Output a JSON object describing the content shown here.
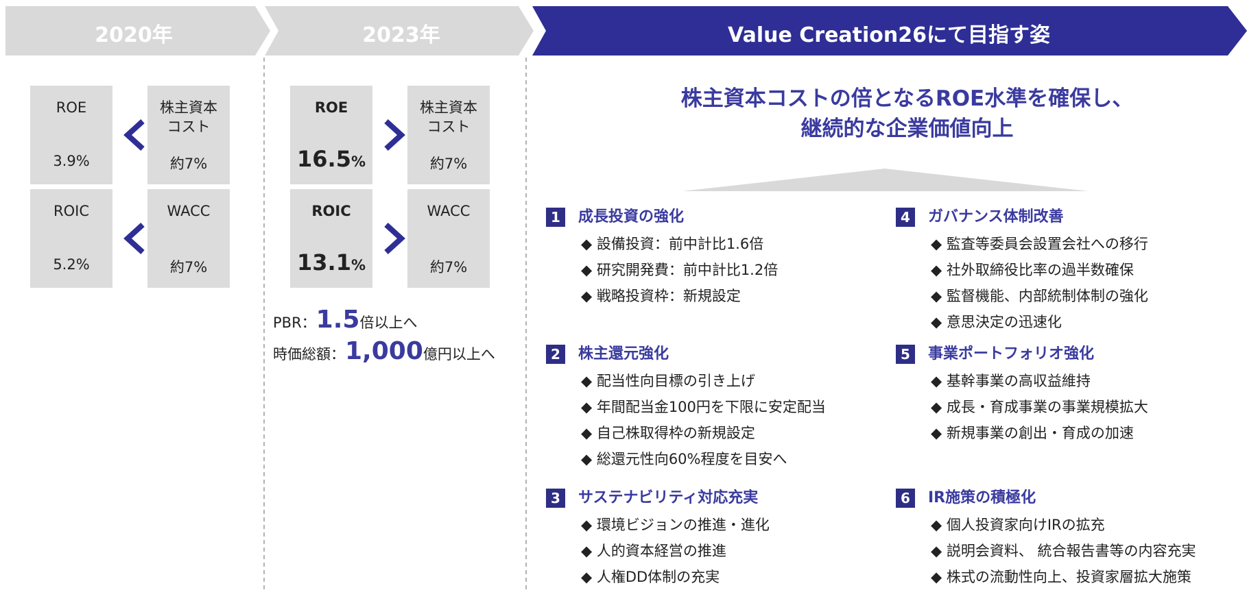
{
  "header": [
    "2020年",
    "2023年",
    "Value Creation26にて目指す姿"
  ],
  "panel_2020": {
    "cells": [
      {
        "label": [
          "ROE"
        ],
        "value": "3.9%"
      },
      {
        "label": [
          "株主資本",
          "コスト"
        ],
        "value": "約7%"
      },
      {
        "label": [
          "ROIC"
        ],
        "value": "5.2%"
      },
      {
        "label": [
          "WACC"
        ],
        "value": "約7%"
      }
    ]
  },
  "panel_2023": {
    "cells": [
      {
        "label": [
          "ROE"
        ],
        "value": "16.5",
        "unit": "%"
      },
      {
        "label": [
          "株主資本",
          "コスト"
        ],
        "value": "約7%"
      },
      {
        "label": [
          "ROIC"
        ],
        "value": "13.1",
        "unit": "%"
      },
      {
        "label": [
          "WACC"
        ],
        "value": "約7%"
      }
    ],
    "targets": [
      {
        "prefix": "PBR：",
        "value": "1.5",
        "suffix": "倍以上へ"
      },
      {
        "prefix": "時価総額：",
        "value": "1,000",
        "suffix": "億円以上へ"
      }
    ]
  },
  "goal": {
    "headline": [
      "株主資本コストの倍となるROE水準を確保し、",
      "継続的な企業価値向上"
    ],
    "sections": [
      {
        "number": "1",
        "title": "成長投資の強化",
        "items": [
          "◆ 設備投資：前中計比1.6倍",
          "◆ 研究開発費：前中計比1.2倍",
          "◆ 戦略投資枠：新規設定"
        ]
      },
      {
        "number": "2",
        "title": "株主還元強化",
        "items": [
          "◆ 配当性向目標の引き上げ",
          "◆ 年間配当金100円を下限に安定配当",
          "◆ 自己株取得枠の新規設定",
          "◆ 総還元性向60%程度を目安へ"
        ]
      },
      {
        "number": "3",
        "title": "サステナビリティ対応充実",
        "items": [
          "◆ 環境ビジョンの推進・進化",
          "◆ 人的資本経営の推進",
          "◆ 人権DD体制の充実"
        ]
      },
      {
        "number": "4",
        "title": "ガバナンス体制改善",
        "items": [
          "◆ 監査等委員会設置会社への移行",
          "◆ 社外取締役比率の過半数確保",
          "◆ 監督機能、内部統制体制の強化",
          "◆ 意思決定の迅速化"
        ]
      },
      {
        "number": "5",
        "title": "事業ポートフォリオ強化",
        "items": [
          "◆ 基幹事業の高収益維持",
          "◆ 成長・育成事業の事業規模拡大",
          "◆ 新規事業の創出・育成の加速"
        ]
      },
      {
        "number": "6",
        "title": "IR施策の積極化",
        "items": [
          "◆ 個人投資家向けIRの拡充",
          "◆ 説明会資料、 統合報告書等の内容充実",
          "◆ 株式の流動性向上、投資家層拡大施策"
        ]
      }
    ]
  }
}
